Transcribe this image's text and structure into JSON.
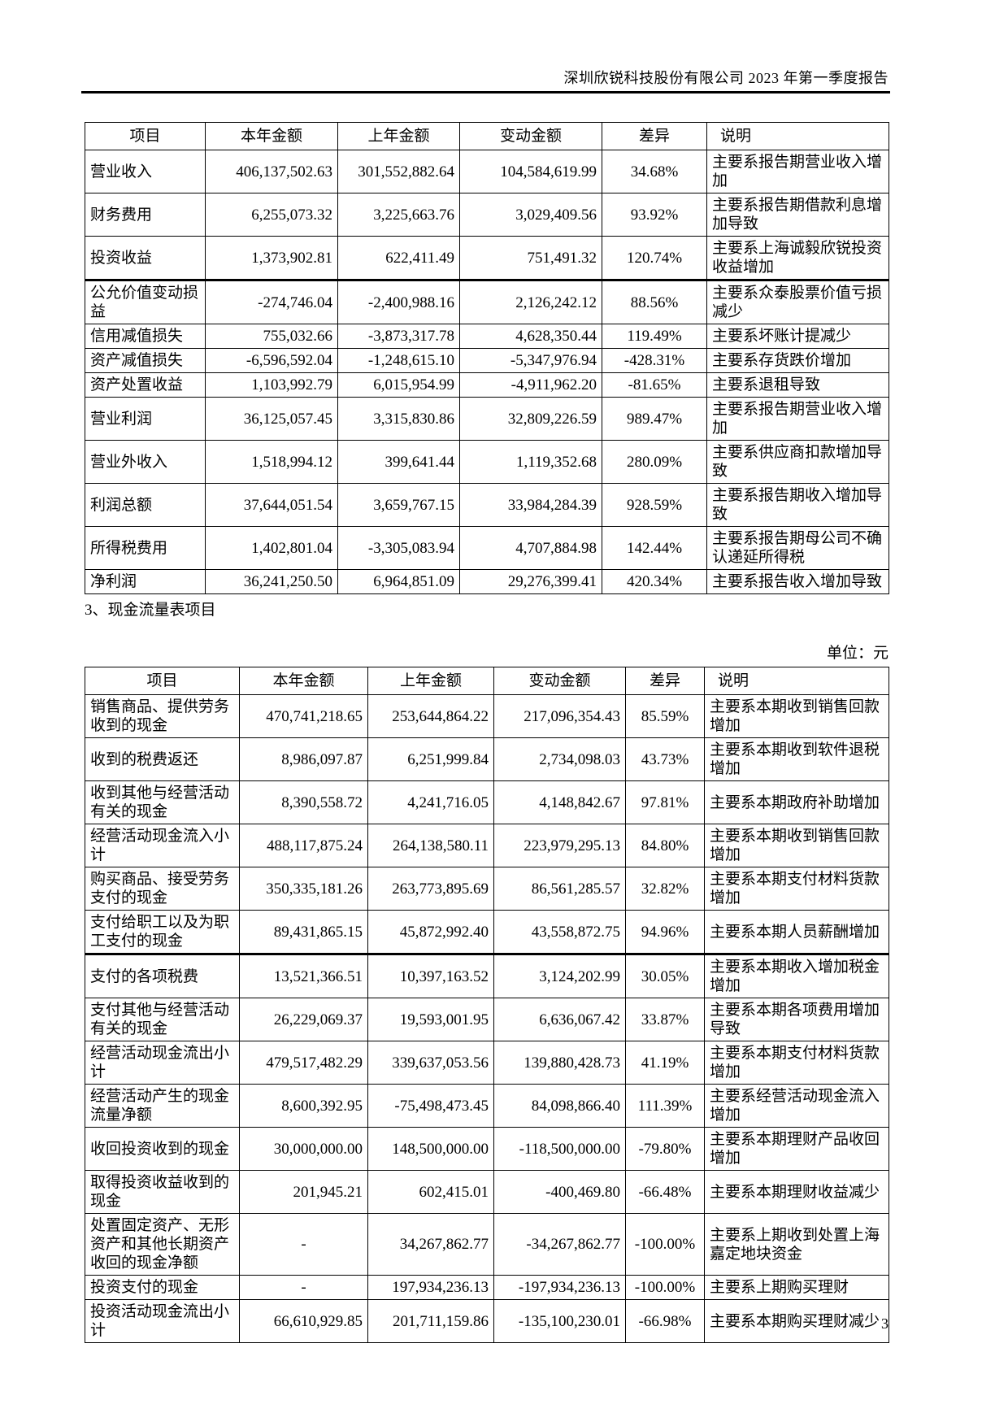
{
  "page": {
    "header_title": "深圳欣锐科技股份有限公司 2023 年第一季度报告",
    "section_label": "3、现金流量表项目",
    "unit_label": "单位：元",
    "page_number": "3"
  },
  "colors": {
    "text": "#000000",
    "border": "#000000",
    "background": "#ffffff"
  },
  "table1": {
    "headers": [
      "项目",
      "本年金额",
      "上年金额",
      "变动金额",
      "差异",
      "说明"
    ],
    "rows": [
      {
        "item": "营业收入",
        "current": "406,137,502.63",
        "prior": "301,552,882.64",
        "change": "104,584,619.99",
        "diff": "34.68%",
        "note": "主要系报告期营业收入增加"
      },
      {
        "item": "财务费用",
        "current": "6,255,073.32",
        "prior": "3,225,663.76",
        "change": "3,029,409.56",
        "diff": "93.92%",
        "note": "主要系报告期借款利息增加导致"
      },
      {
        "item": "投资收益",
        "current": "1,373,902.81",
        "prior": "622,411.49",
        "change": "751,491.32",
        "diff": "120.74%",
        "note": "主要系上海诚毅欣锐投资收益增加"
      },
      {
        "item": "公允价值变动损益",
        "current": "-274,746.04",
        "prior": "-2,400,988.16",
        "change": "2,126,242.12",
        "diff": "88.56%",
        "note": "主要系众泰股票价值亏损减少"
      },
      {
        "item": "信用减值损失",
        "current": "755,032.66",
        "prior": "-3,873,317.78",
        "change": "4,628,350.44",
        "diff": "119.49%",
        "note": "主要系坏账计提减少"
      },
      {
        "item": "资产减值损失",
        "current": "-6,596,592.04",
        "prior": "-1,248,615.10",
        "change": "-5,347,976.94",
        "diff": "-428.31%",
        "note": "主要系存货跌价增加"
      },
      {
        "item": "资产处置收益",
        "current": "1,103,992.79",
        "prior": "6,015,954.99",
        "change": "-4,911,962.20",
        "diff": "-81.65%",
        "note": "主要系退租导致"
      },
      {
        "item": "营业利润",
        "current": "36,125,057.45",
        "prior": "3,315,830.86",
        "change": "32,809,226.59",
        "diff": "989.47%",
        "note": "主要系报告期营业收入增加"
      },
      {
        "item": "营业外收入",
        "current": "1,518,994.12",
        "prior": "399,641.44",
        "change": "1,119,352.68",
        "diff": "280.09%",
        "note": "主要系供应商扣款增加导致"
      },
      {
        "item": "利润总额",
        "current": "37,644,051.54",
        "prior": "3,659,767.15",
        "change": "33,984,284.39",
        "diff": "928.59%",
        "note": "主要系报告期收入增加导致"
      },
      {
        "item": "所得税费用",
        "current": "1,402,801.04",
        "prior": "-3,305,083.94",
        "change": "4,707,884.98",
        "diff": "142.44%",
        "note": "主要系报告期母公司不确认递延所得税"
      },
      {
        "item": "净利润",
        "current": "36,241,250.50",
        "prior": "6,964,851.09",
        "change": "29,276,399.41",
        "diff": "420.34%",
        "note": "主要系报告收入增加导致"
      }
    ]
  },
  "table2": {
    "headers": [
      "项目",
      "本年金额",
      "上年金额",
      "变动金额",
      "差异",
      "说明"
    ],
    "rows": [
      {
        "item": "销售商品、提供劳务收到的现金",
        "current": "470,741,218.65",
        "prior": "253,644,864.22",
        "change": "217,096,354.43",
        "diff": "85.59%",
        "note": "主要系本期收到销售回款增加"
      },
      {
        "item": "收到的税费返还",
        "current": "8,986,097.87",
        "prior": "6,251,999.84",
        "change": "2,734,098.03",
        "diff": "43.73%",
        "note": "主要系本期收到软件退税增加"
      },
      {
        "item": "收到其他与经营活动有关的现金",
        "current": "8,390,558.72",
        "prior": "4,241,716.05",
        "change": "4,148,842.67",
        "diff": "97.81%",
        "note": "主要系本期政府补助增加"
      },
      {
        "item": "经营活动现金流入小计",
        "current": "488,117,875.24",
        "prior": "264,138,580.11",
        "change": "223,979,295.13",
        "diff": "84.80%",
        "note": "主要系本期收到销售回款增加"
      },
      {
        "item": "购买商品、接受劳务支付的现金",
        "current": "350,335,181.26",
        "prior": "263,773,895.69",
        "change": "86,561,285.57",
        "diff": "32.82%",
        "note": "主要系本期支付材料货款增加"
      },
      {
        "item": "支付给职工以及为职工支付的现金",
        "current": "89,431,865.15",
        "prior": "45,872,992.40",
        "change": "43,558,872.75",
        "diff": "94.96%",
        "note": "主要系本期人员薪酬增加"
      },
      {
        "item": "支付的各项税费",
        "current": "13,521,366.51",
        "prior": "10,397,163.52",
        "change": "3,124,202.99",
        "diff": "30.05%",
        "note": "主要系本期收入增加税金增加"
      },
      {
        "item": "支付其他与经营活动有关的现金",
        "current": "26,229,069.37",
        "prior": "19,593,001.95",
        "change": "6,636,067.42",
        "diff": "33.87%",
        "note": "主要系本期各项费用增加导致"
      },
      {
        "item": "经营活动现金流出小计",
        "current": "479,517,482.29",
        "prior": "339,637,053.56",
        "change": "139,880,428.73",
        "diff": "41.19%",
        "note": "主要系本期支付材料货款增加"
      },
      {
        "item": "经营活动产生的现金流量净额",
        "current": "8,600,392.95",
        "prior": "-75,498,473.45",
        "change": "84,098,866.40",
        "diff": "111.39%",
        "note": "主要系经营活动现金流入增加"
      },
      {
        "item": "收回投资收到的现金",
        "current": "30,000,000.00",
        "prior": "148,500,000.00",
        "change": "-118,500,000.00",
        "diff": "-79.80%",
        "note": "主要系本期理财产品收回增加"
      },
      {
        "item": "取得投资收益收到的现金",
        "current": "201,945.21",
        "prior": "602,415.01",
        "change": "-400,469.80",
        "diff": "-66.48%",
        "note": "主要系本期理财收益减少"
      },
      {
        "item": "处置固定资产、无形资产和其他长期资产收回的现金净额",
        "current": "-",
        "prior": "34,267,862.77",
        "change": "-34,267,862.77",
        "diff": "-100.00%",
        "note": "主要系上期收到处置上海嘉定地块资金"
      },
      {
        "item": "投资支付的现金",
        "current": "-",
        "prior": "197,934,236.13",
        "change": "-197,934,236.13",
        "diff": "-100.00%",
        "note": "主要系上期购买理财"
      },
      {
        "item": "投资活动现金流出小计",
        "current": "66,610,929.85",
        "prior": "201,711,159.86",
        "change": "-135,100,230.01",
        "diff": "-66.98%",
        "note": "主要系本期购买理财减少"
      }
    ]
  }
}
